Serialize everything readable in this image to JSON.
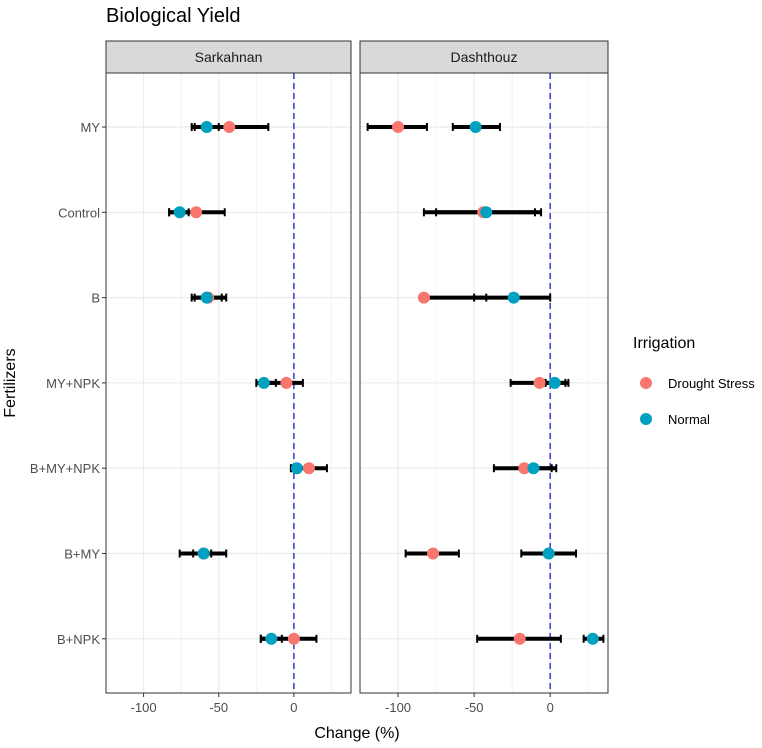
{
  "chart_data": {
    "type": "dot-errorbar",
    "title": "Biological Yield",
    "xlabel": "Change (%)",
    "ylabel": "Fertilizers",
    "xlim": [
      -125,
      38
    ],
    "xticks": [
      -100,
      -50,
      0
    ],
    "categories": [
      "MY",
      "Control",
      "B",
      "MY+NPK",
      "B+MY+NPK",
      "B+MY",
      "B+NPK"
    ],
    "reference_line_x": 0,
    "legend": {
      "title": "Irrigation",
      "entries": [
        {
          "name": "Drought Stress",
          "color": "#f8766d"
        },
        {
          "name": "Normal",
          "color": "#00a0c0"
        }
      ]
    },
    "panels": [
      {
        "name": "Sarkahnan",
        "series": [
          {
            "name": "Drought Stress",
            "color": "#f8766d",
            "values": [
              -43,
              -65,
              -57,
              -5,
              10,
              -60,
              0
            ],
            "lower": [
              -66,
              -83,
              -66,
              -22,
              -2,
              -76,
              -22
            ],
            "upper": [
              -17,
              -46,
              -45,
              6,
              22,
              -45,
              15
            ]
          },
          {
            "name": "Normal",
            "color": "#00a0c0",
            "values": [
              -58,
              -76,
              -58,
              -20,
              2,
              -60,
              -15
            ],
            "lower": [
              -68,
              -83,
              -68,
              -25,
              -1,
              -67,
              -22
            ],
            "upper": [
              -50,
              -70,
              -48,
              -12,
              4,
              -55,
              -8
            ]
          }
        ]
      },
      {
        "name": "Dashthouz",
        "series": [
          {
            "name": "Drought Stress",
            "color": "#f8766d",
            "values": [
              -100,
              -44,
              -83,
              -7,
              -17,
              -77,
              -20
            ],
            "lower": [
              -120,
              -83,
              -83,
              -26,
              -37,
              -95,
              -48
            ],
            "upper": [
              -81,
              -6,
              -42,
              10,
              1,
              -60,
              7
            ]
          },
          {
            "name": "Normal",
            "color": "#00a0c0",
            "values": [
              -49,
              -42,
              -24,
              3,
              -11,
              -1,
              28
            ],
            "lower": [
              -64,
              -75,
              -50,
              -3,
              -18,
              -19,
              22
            ],
            "upper": [
              -33,
              -10,
              0,
              12,
              4,
              17,
              35
            ]
          }
        ]
      }
    ]
  }
}
